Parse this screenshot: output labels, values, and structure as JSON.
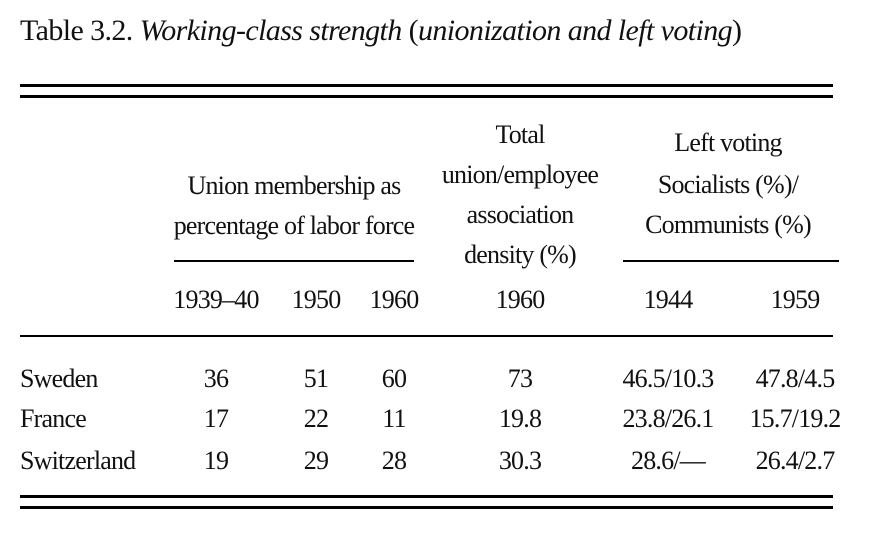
{
  "table": {
    "title_prefix": "Table 3.2.",
    "title_italic": "Working-class strength",
    "title_paren_open": "(",
    "title_paren_italic": "unionization and left voting",
    "title_paren_close": ")",
    "headers": {
      "union_group": [
        "Union membership as",
        "percentage of labor force"
      ],
      "total_group": [
        "Total",
        "union/employee",
        "association",
        "density (%)"
      ],
      "left_group": [
        "Left voting",
        "Socialists (%)/",
        "Communists (%)"
      ],
      "years": [
        "1939–40",
        "1950",
        "1960",
        "1960",
        "1944",
        "1959"
      ]
    },
    "rows": [
      {
        "country": "Sweden",
        "values": [
          "36",
          "51",
          "60",
          "73",
          "46.5/10.3",
          "47.8/4.5"
        ]
      },
      {
        "country": "France",
        "values": [
          "17",
          "22",
          "11",
          "19.8",
          "23.8/26.1",
          "15.7/19.2"
        ]
      },
      {
        "country": "Switzerland",
        "values": [
          "19",
          "29",
          "28",
          "30.3",
          "28.6/—",
          "26.4/2.7"
        ]
      }
    ]
  }
}
